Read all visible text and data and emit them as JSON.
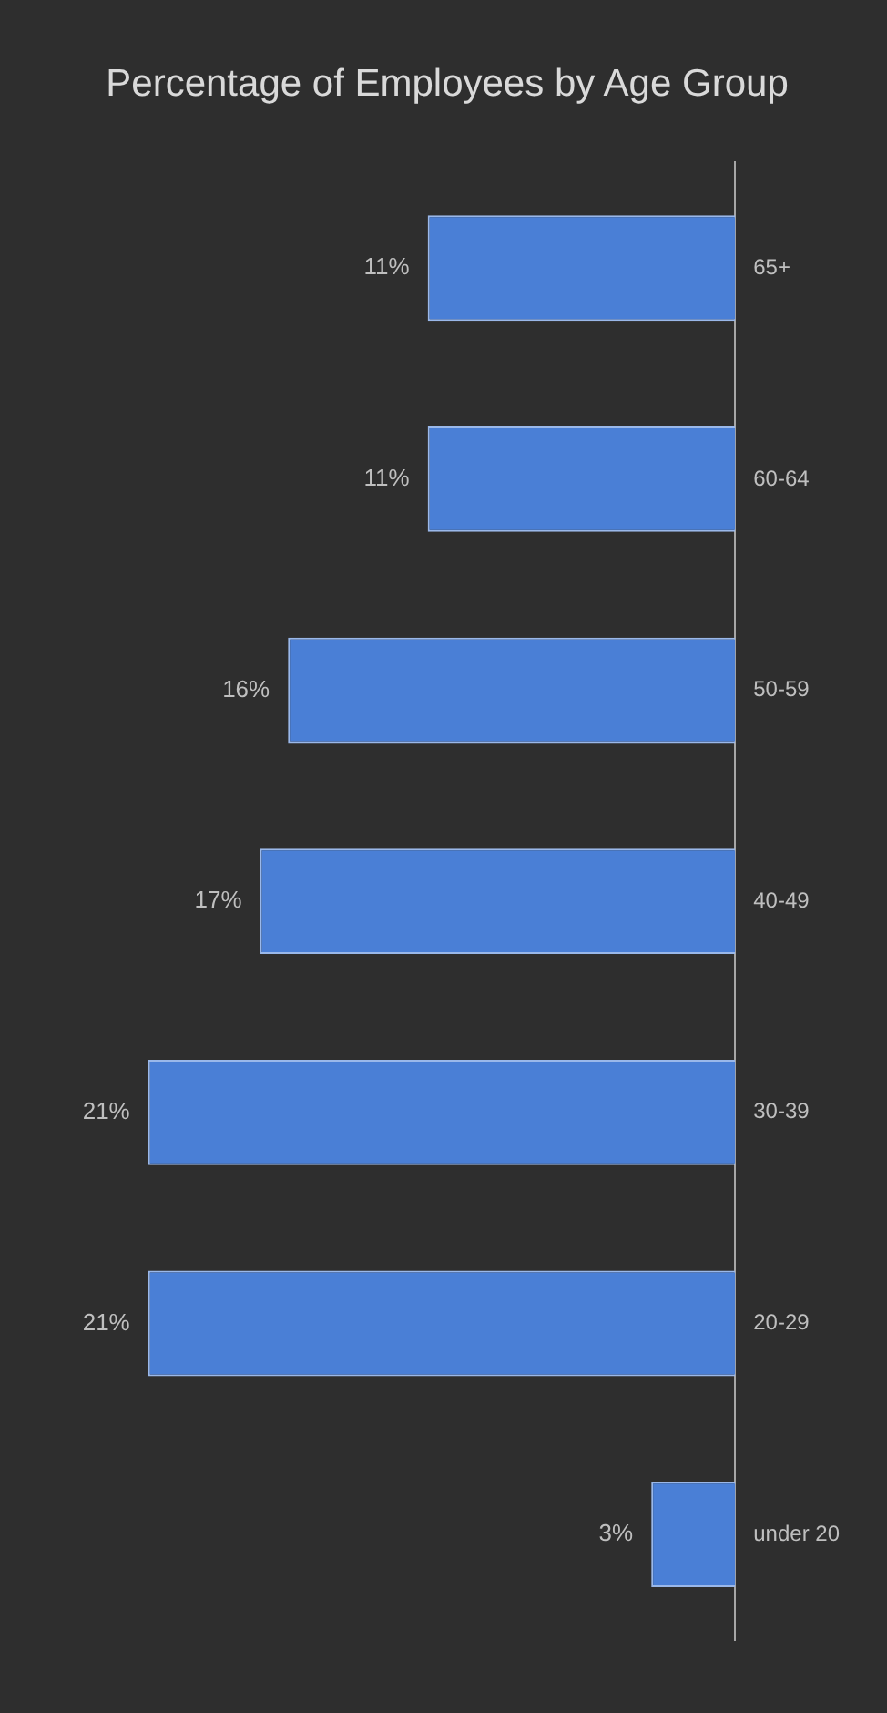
{
  "chart_data": {
    "type": "bar",
    "orientation": "horizontal",
    "title": "Percentage of Employees by Age Group",
    "categories": [
      "65+",
      "60-64",
      "50-59",
      "40-49",
      "30-39",
      "20-29",
      "under 20"
    ],
    "values": [
      11,
      11,
      16,
      17,
      21,
      21,
      3
    ],
    "value_labels": [
      "11%",
      "11%",
      "16%",
      "17%",
      "21%",
      "21%",
      "3%"
    ],
    "color": "#4a7fd6",
    "legend": false,
    "tick_labels": "y"
  }
}
